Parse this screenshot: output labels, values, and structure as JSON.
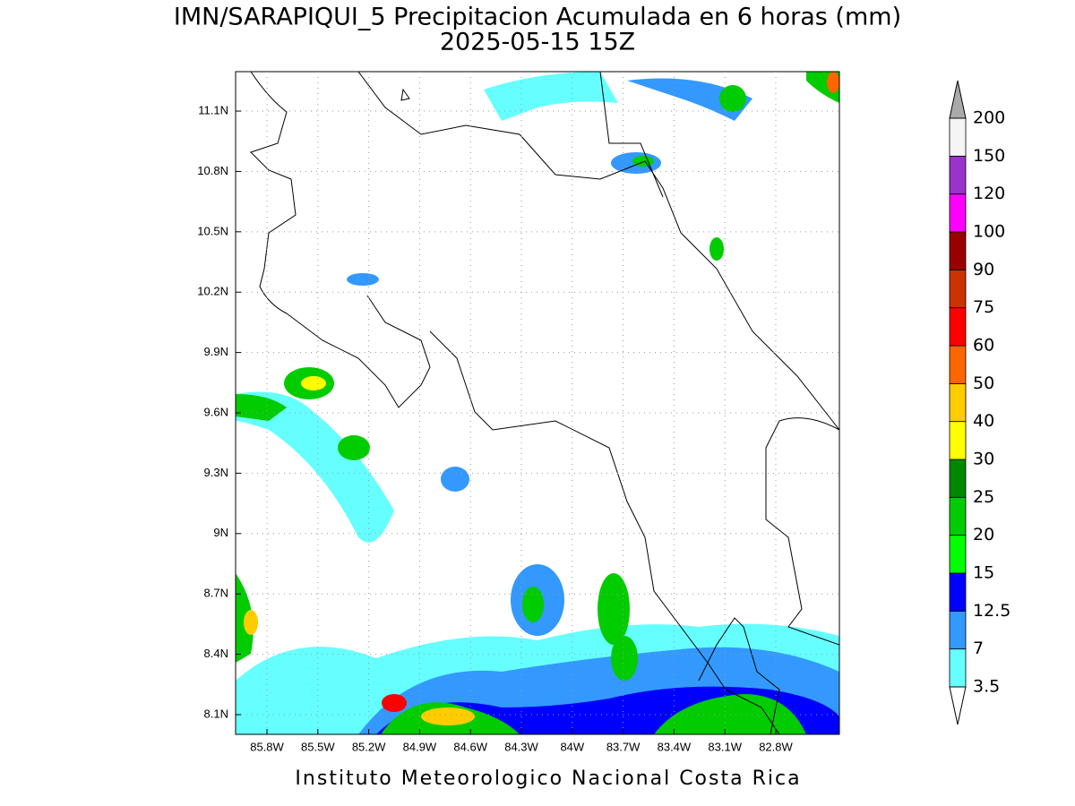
{
  "chart_data": {
    "type": "contour-map",
    "title": "IMN/SARAPIQUI_5 Precipitacion Acumulada en 6 horas (mm)",
    "subtitle": "2025-05-15 15Z",
    "footer": "Instituto Meteorologico Nacional Costa Rica",
    "xlim": [
      -85.985,
      -82.425
    ],
    "ylim": [
      8.002,
      11.296
    ],
    "xticks": [
      {
        "value": -85.8,
        "label": "85.8W"
      },
      {
        "value": -85.5,
        "label": "85.5W"
      },
      {
        "value": -85.2,
        "label": "85.2W"
      },
      {
        "value": -84.9,
        "label": "84.9W"
      },
      {
        "value": -84.6,
        "label": "84.6W"
      },
      {
        "value": -84.3,
        "label": "84.3W"
      },
      {
        "value": -84,
        "label": "84W"
      },
      {
        "value": -83.7,
        "label": "83.7W"
      },
      {
        "value": -83.4,
        "label": "83.4W"
      },
      {
        "value": -83.1,
        "label": "83.1W"
      },
      {
        "value": -82.8,
        "label": "82.8W"
      }
    ],
    "yticks": [
      {
        "value": 8.1,
        "label": "8.1N"
      },
      {
        "value": 8.4,
        "label": "8.4N"
      },
      {
        "value": 8.7,
        "label": "8.7N"
      },
      {
        "value": 9,
        "label": "9N"
      },
      {
        "value": 9.3,
        "label": "9.3N"
      },
      {
        "value": 9.6,
        "label": "9.6N"
      },
      {
        "value": 9.9,
        "label": "9.9N"
      },
      {
        "value": 10.2,
        "label": "10.2N"
      },
      {
        "value": 10.5,
        "label": "10.5N"
      },
      {
        "value": 10.8,
        "label": "10.8N"
      },
      {
        "value": 11.1,
        "label": "11.1N"
      }
    ],
    "grid": true,
    "levels": [
      3.5,
      7,
      12.5,
      15,
      20,
      25,
      30,
      40,
      50,
      60,
      75,
      90,
      100,
      120,
      150,
      200
    ],
    "colors": [
      "#66ffff",
      "#3399ff",
      "#0000ff",
      "#00ff00",
      "#00cc00",
      "#008800",
      "#ffff00",
      "#ffcc00",
      "#ff6600",
      "#ff0000",
      "#cc3300",
      "#990000",
      "#ff00ff",
      "#9933cc",
      "#f5f5f5"
    ],
    "under_color": "#ffffff",
    "over_color": "#aaaaaa"
  }
}
